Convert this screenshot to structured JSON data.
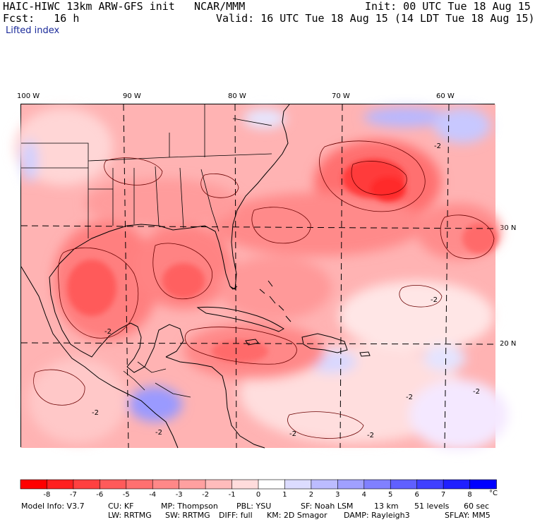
{
  "header": {
    "model_title": "HAIC-HIWC 13km ARW-GFS init",
    "center": "NCAR/MMM",
    "init": "Init: 00 UTC Tue 18 Aug 15",
    "fcst": "Fcst:   16 h",
    "valid": "Valid: 16 UTC Tue 18 Aug 15 (14 LDT Tue 18 Aug 15)",
    "field": "Lifted index"
  },
  "map": {
    "lon_labels": [
      "100 W",
      "90 W",
      "80 W",
      "70 W",
      "60 W"
    ],
    "lat_labels": [
      "30 N",
      "20 N"
    ],
    "contour_labels": [
      "-2",
      "-2",
      "-2",
      "-2",
      "-2",
      "-2",
      "-2",
      "-2",
      "-2"
    ],
    "colors": {
      "strong_unstable": "#ff3a3a",
      "unstable": "#ff8080",
      "weak": "#ffc4c4",
      "neutral": "#ffecec",
      "stable": "#c8c8ff",
      "very_stable": "#7a7aff"
    }
  },
  "colorbar": {
    "labels": [
      "-8",
      "-7",
      "-6",
      "-5",
      "-4",
      "-3",
      "-2",
      "-1",
      "0",
      "1",
      "2",
      "3",
      "4",
      "5",
      "6",
      "7",
      "8"
    ],
    "unit": "°C",
    "colors": [
      "#ff0000",
      "#ff2020",
      "#ff4040",
      "#ff5a5a",
      "#ff7070",
      "#ff8888",
      "#ffa0a0",
      "#ffbcbc",
      "#ffdcdc",
      "#ffffff",
      "#dcdcff",
      "#bcbcff",
      "#a0a0ff",
      "#8080ff",
      "#6060ff",
      "#4040ff",
      "#2020ff",
      "#0000ff"
    ]
  },
  "footer": {
    "line1": [
      "Model Info: V3.7",
      "CU: KF",
      "MP: Thompson",
      "PBL: YSU",
      "SF: Noah LSM",
      "13 km",
      "51 levels",
      "60 sec"
    ],
    "line2": [
      "LW: RRTMG",
      "SW: RRTMG",
      "DIFF: full",
      "KM: 2D Smagor",
      "DAMP: Rayleigh3",
      "SFLAY: MM5"
    ]
  }
}
